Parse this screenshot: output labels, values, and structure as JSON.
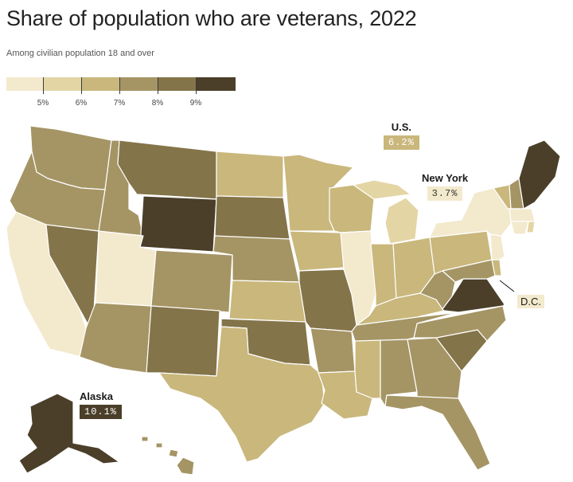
{
  "title": "Share of population who are veterans, 2022",
  "subtitle": "Among civilian population 18 and over",
  "legend": {
    "ticks": [
      "5%",
      "6%",
      "7%",
      "8%",
      "9%"
    ],
    "bins": [
      {
        "color": "#f3e9cd"
      },
      {
        "color": "#e4d5a5"
      },
      {
        "color": "#c9b77c"
      },
      {
        "color": "#a59565"
      },
      {
        "color": "#847449"
      },
      {
        "color": "#4b3f2a"
      }
    ]
  },
  "colors": {
    "bin1": "#f3e9cd",
    "bin2": "#e4d5a5",
    "bin3": "#c9b77c",
    "bin4": "#a59565",
    "bin5": "#847449",
    "bin6": "#4b3f2a",
    "border": "#ffffff"
  },
  "callouts": {
    "us": {
      "name": "U.S.",
      "value": "6.2%"
    },
    "new_york": {
      "name": "New York",
      "value": "3.7%"
    },
    "dc": {
      "name": "D.C."
    },
    "alaska": {
      "name": "Alaska",
      "value": "10.1%"
    }
  }
}
